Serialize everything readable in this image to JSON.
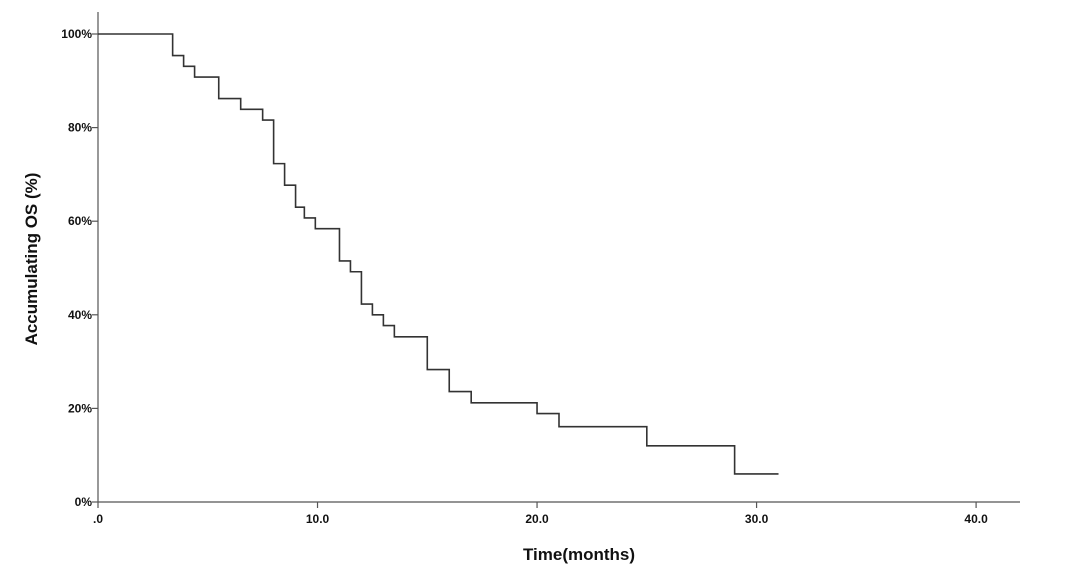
{
  "chart_data": {
    "type": "line",
    "step": true,
    "title": "",
    "xlabel": "Time(months)",
    "ylabel": "Accumulating OS (%)",
    "xlim": [
      0,
      42
    ],
    "ylim": [
      0,
      1.0
    ],
    "grid": false,
    "x_ticks": [
      {
        "value": 0,
        "label": ".0"
      },
      {
        "value": 10,
        "label": "10.0"
      },
      {
        "value": 20,
        "label": "20.0"
      },
      {
        "value": 30,
        "label": "30.0"
      },
      {
        "value": 40,
        "label": "40.0"
      }
    ],
    "y_ticks": [
      {
        "value": 0,
        "label": "0%"
      },
      {
        "value": 0.2,
        "label": "20%"
      },
      {
        "value": 0.4,
        "label": "40%"
      },
      {
        "value": 0.6,
        "label": "60%"
      },
      {
        "value": 0.8,
        "label": "80%"
      },
      {
        "value": 1.0,
        "label": "100%"
      }
    ],
    "series": [
      {
        "steps": [
          [
            0,
            1.0
          ],
          [
            3.4,
            0.954
          ],
          [
            3.9,
            0.931
          ],
          [
            4.4,
            0.908
          ],
          [
            5.5,
            0.862
          ],
          [
            6.5,
            0.839
          ],
          [
            7.5,
            0.816
          ],
          [
            8.0,
            0.723
          ],
          [
            8.5,
            0.677
          ],
          [
            9.0,
            0.63
          ],
          [
            9.4,
            0.607
          ],
          [
            9.9,
            0.584
          ],
          [
            11.0,
            0.515
          ],
          [
            11.5,
            0.492
          ],
          [
            12.0,
            0.423
          ],
          [
            12.5,
            0.4
          ],
          [
            13.0,
            0.377
          ],
          [
            13.5,
            0.353
          ],
          [
            15.0,
            0.283
          ],
          [
            16.0,
            0.236
          ],
          [
            17.0,
            0.212
          ],
          [
            20.0,
            0.189
          ],
          [
            21.0,
            0.161
          ],
          [
            25.0,
            0.12
          ],
          [
            29.0,
            0.06
          ]
        ],
        "end_x": 31.0
      }
    ]
  }
}
